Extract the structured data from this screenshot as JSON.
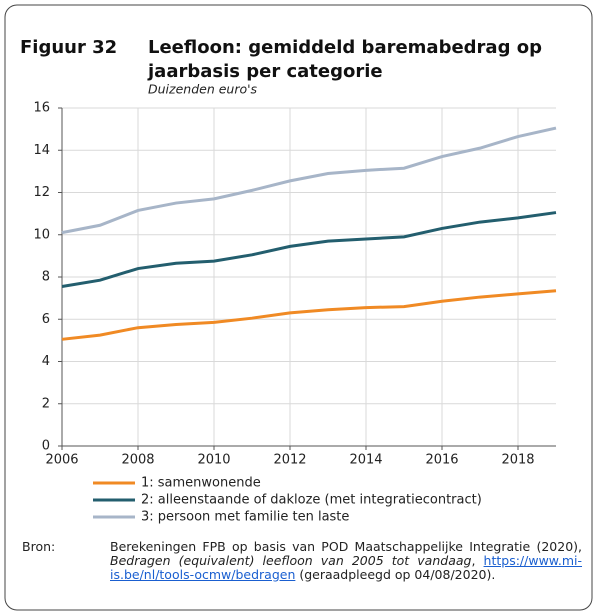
{
  "chart_data": {
    "type": "line",
    "label": "Figuur 32",
    "title_lines": [
      "Leefloon: gemiddeld baremabedrag op",
      "jaarbasis per categorie"
    ],
    "subtitle": "Duizenden euro's",
    "x": [
      2006,
      2007,
      2008,
      2009,
      2010,
      2011,
      2012,
      2013,
      2014,
      2015,
      2016,
      2017,
      2018,
      2019
    ],
    "series": [
      {
        "name": "1: samenwonende",
        "color": "#f08a24",
        "values": [
          5.05,
          5.25,
          5.6,
          5.75,
          5.85,
          6.05,
          6.3,
          6.45,
          6.55,
          6.6,
          6.85,
          7.05,
          7.2,
          7.35
        ]
      },
      {
        "name": "2: alleenstaande of dakloze (met integratiecontract)",
        "color": "#235e6e",
        "values": [
          7.55,
          7.85,
          8.4,
          8.65,
          8.75,
          9.05,
          9.45,
          9.7,
          9.8,
          9.9,
          10.3,
          10.6,
          10.8,
          11.05
        ]
      },
      {
        "name": "3: persoon met familie ten laste",
        "color": "#a7b5c8",
        "values": [
          10.1,
          10.45,
          11.15,
          11.5,
          11.7,
          12.1,
          12.55,
          12.9,
          13.05,
          13.15,
          13.7,
          14.1,
          14.65,
          15.05
        ]
      }
    ],
    "xlim": [
      2006,
      2019
    ],
    "xticks": [
      2006,
      2008,
      2010,
      2012,
      2014,
      2016,
      2018
    ],
    "ylim": [
      0,
      16
    ],
    "yticks": [
      0,
      2,
      4,
      6,
      8,
      10,
      12,
      14,
      16
    ],
    "grid": true,
    "legend": "bottom"
  },
  "source": {
    "label": "Bron:",
    "text_1": "Berekeningen FPB op basis van POD Maatschappelijke Integratie (2020), ",
    "title": "Bedragen (equivalent) leefloon van 2005 tot vandaag",
    "text_2": ", ",
    "url": "https://www.mi-is.be/nl/tools-ocmw/bedragen",
    "text_3": " (geraadpleegd op 04/08/2020)."
  }
}
